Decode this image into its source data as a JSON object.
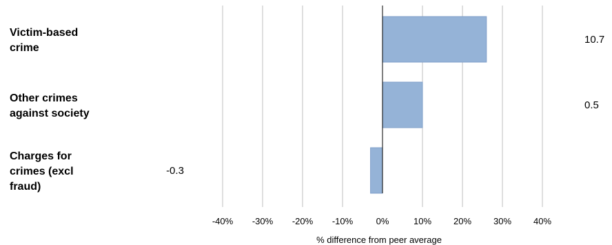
{
  "chart_data": {
    "type": "bar",
    "orientation": "horizontal",
    "categories": [
      "Victim-based crime",
      "Other crimes against society",
      "Charges for crimes (excl fraud)"
    ],
    "category_lines": [
      [
        "Victim-based",
        "crime"
      ],
      [
        "Other crimes",
        "against society"
      ],
      [
        "Charges for",
        "crimes (excl",
        "fraud)"
      ]
    ],
    "values": [
      26,
      10,
      -3
    ],
    "value_labels": [
      "10.7",
      "0.5",
      "-0.3"
    ],
    "xlim": [
      -40,
      40
    ],
    "xticks": [
      -40,
      -30,
      -20,
      -10,
      0,
      10,
      20,
      30,
      40
    ],
    "xtick_labels": [
      "-40%",
      "-30%",
      "-20%",
      "-10%",
      "0%",
      "10%",
      "20%",
      "30%",
      "40%"
    ],
    "xlabel": "% difference from peer average",
    "ylabel": "",
    "title": "",
    "grid": "vertical",
    "legend": "none",
    "bar_color": "#95b3d7",
    "bar_edge_color": "#7f9fc9",
    "gridline_color": "#bfbfbf",
    "zero_line_color": "#000000"
  }
}
